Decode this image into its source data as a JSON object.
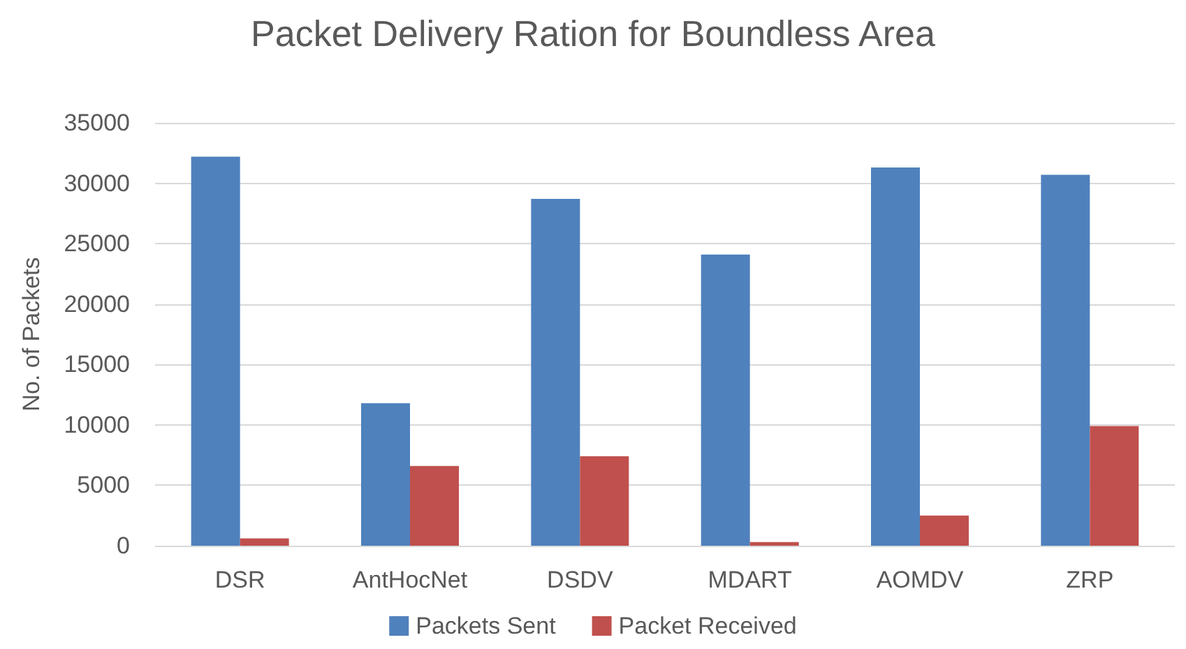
{
  "chart_data": {
    "type": "bar",
    "title": "Packet Delivery Ration for Boundless Area",
    "ylabel": "No. of Packets",
    "categories": [
      "DSR",
      "AntHocNet",
      "DSDV",
      "MDART",
      "AOMDV",
      "ZRP"
    ],
    "series": [
      {
        "name": "Packets Sent",
        "color": "#4f81bd",
        "values": [
          32200,
          11800,
          28700,
          24100,
          31300,
          30700
        ]
      },
      {
        "name": "Packet Received",
        "color": "#c0504d",
        "values": [
          600,
          6600,
          7400,
          300,
          2500,
          9900
        ]
      }
    ],
    "ylim": [
      0,
      35000
    ],
    "yticks": [
      0,
      5000,
      10000,
      15000,
      20000,
      25000,
      30000,
      35000
    ],
    "grid": true,
    "legend": "bottom"
  }
}
